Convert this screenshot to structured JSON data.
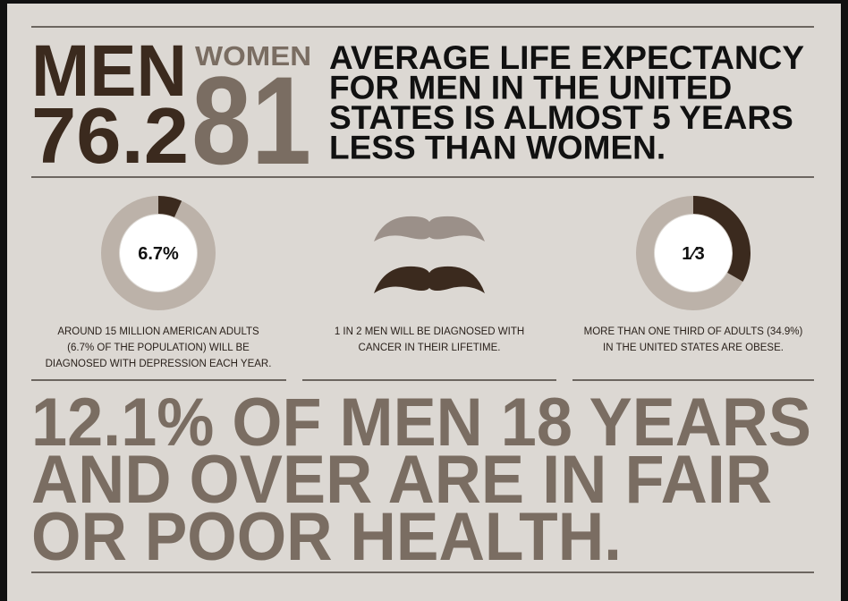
{
  "headline": {
    "men_label": "MEN",
    "men_value": "76.2",
    "women_label": "WOMEN",
    "women_value": "81",
    "text": [
      "AVERAGE LIFE EXPECTANCY",
      "FOR MEN IN THE UNITED",
      "STATES IS ALMOST 5 YEARS",
      "LESS THAN WOMEN."
    ]
  },
  "stats": [
    {
      "label": "6.7%",
      "percent": 6.7,
      "caption": [
        "AROUND 15 MILLION AMERICAN ADULTS",
        "(6.7% OF THE POPULATION) WILL BE",
        "DIAGNOSED WITH DEPRESSION EACH YEAR."
      ]
    },
    {
      "caption": [
        "1 IN 2 MEN WILL BE DIAGNOSED WITH",
        "CANCER IN THEIR LIFETIME."
      ]
    },
    {
      "label": "1⁄3",
      "percent": 33.3,
      "caption": [
        "MORE THAN ONE THIRD OF ADULTS (34.9%)",
        "IN THE UNITED STATES ARE OBESE."
      ]
    }
  ],
  "footer": {
    "lines": [
      "12.1% OF MEN 18 YEARS",
      "AND OVER ARE IN FAIR",
      "OR POOR HEALTH."
    ]
  }
}
